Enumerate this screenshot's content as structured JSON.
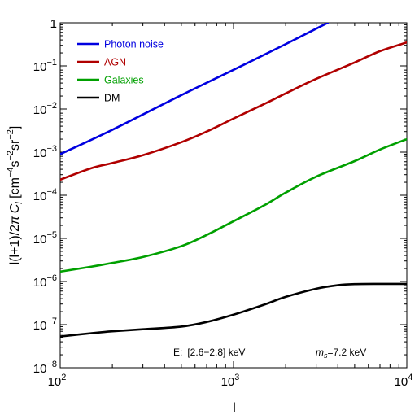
{
  "chart_data": {
    "type": "line",
    "xscale": "log",
    "yscale": "log",
    "xlim": [
      100,
      10000
    ],
    "ylim": [
      1e-08,
      1
    ],
    "xlabel": "l",
    "ylabel_parts": {
      "prefix": "l(l+1)/2",
      "pi": "π",
      "cl": "C",
      "cl_sub": "l",
      "units_open": "  [cm",
      "sup1": "−4",
      "s": "s",
      "sup2": "−2",
      "sr": "sr",
      "sup3": "−2",
      "units_close": "]"
    },
    "x_ticks": [
      {
        "value": 100,
        "base": "10",
        "exp": "2"
      },
      {
        "value": 1000,
        "base": "10",
        "exp": "3"
      },
      {
        "value": 10000,
        "base": "10",
        "exp": "4"
      }
    ],
    "y_ticks": [
      {
        "value": 1,
        "base": "1",
        "exp": ""
      },
      {
        "value": 0.1,
        "base": "10",
        "exp": "−1"
      },
      {
        "value": 0.01,
        "base": "10",
        "exp": "−2"
      },
      {
        "value": 0.001,
        "base": "10",
        "exp": "−3"
      },
      {
        "value": 0.0001,
        "base": "10",
        "exp": "−4"
      },
      {
        "value": 1e-05,
        "base": "10",
        "exp": "−5"
      },
      {
        "value": 1e-06,
        "base": "10",
        "exp": "−6"
      },
      {
        "value": 1e-07,
        "base": "10",
        "exp": "−7"
      },
      {
        "value": 1e-08,
        "base": "10",
        "exp": "−8"
      }
    ],
    "legend_position": "top-left",
    "grid": false,
    "series": [
      {
        "name": "Photon noise",
        "color": "#0000e0",
        "points": [
          [
            100,
            0.0009
          ],
          [
            200,
            0.0033
          ],
          [
            500,
            0.021
          ],
          [
            1000,
            0.081
          ],
          [
            2000,
            0.32
          ],
          [
            3500,
            1.0
          ]
        ]
      },
      {
        "name": "AGN",
        "color": "#b00000",
        "points": [
          [
            100,
            0.00023
          ],
          [
            150,
            0.00042
          ],
          [
            200,
            0.00056
          ],
          [
            300,
            0.00085
          ],
          [
            500,
            0.0017
          ],
          [
            700,
            0.003
          ],
          [
            1000,
            0.006
          ],
          [
            1500,
            0.013
          ],
          [
            2000,
            0.023
          ],
          [
            3000,
            0.05
          ],
          [
            5000,
            0.12
          ],
          [
            7000,
            0.22
          ],
          [
            10000,
            0.35
          ]
        ]
      },
      {
        "name": "Galaxies",
        "color": "#00a000",
        "points": [
          [
            100,
            1.7e-06
          ],
          [
            150,
            2.2e-06
          ],
          [
            200,
            2.7e-06
          ],
          [
            300,
            3.7e-06
          ],
          [
            500,
            6.6e-06
          ],
          [
            700,
            1.2e-05
          ],
          [
            1000,
            2.5e-05
          ],
          [
            1500,
            5.8e-05
          ],
          [
            2000,
            0.000115
          ],
          [
            3000,
            0.00027
          ],
          [
            5000,
            0.00062
          ],
          [
            7000,
            0.00115
          ],
          [
            10000,
            0.002
          ]
        ]
      },
      {
        "name": "DM",
        "color": "#000000",
        "points": [
          [
            100,
            5.3e-08
          ],
          [
            150,
            6.3e-08
          ],
          [
            200,
            7e-08
          ],
          [
            300,
            7.8e-08
          ],
          [
            500,
            9e-08
          ],
          [
            700,
            1.15e-07
          ],
          [
            1000,
            1.7e-07
          ],
          [
            1500,
            2.9e-07
          ],
          [
            2000,
            4.4e-07
          ],
          [
            3000,
            6.8e-07
          ],
          [
            4000,
            8.2e-07
          ],
          [
            5000,
            8.7e-07
          ],
          [
            7000,
            8.8e-07
          ],
          [
            10000,
            8.8e-07
          ]
        ]
      }
    ],
    "annotations": {
      "energy_label": "E:",
      "energy_range": "[2.6−2.8] keV",
      "mass_symbol": "m",
      "mass_sub": "s",
      "mass_value": "=7.2 keV"
    }
  }
}
